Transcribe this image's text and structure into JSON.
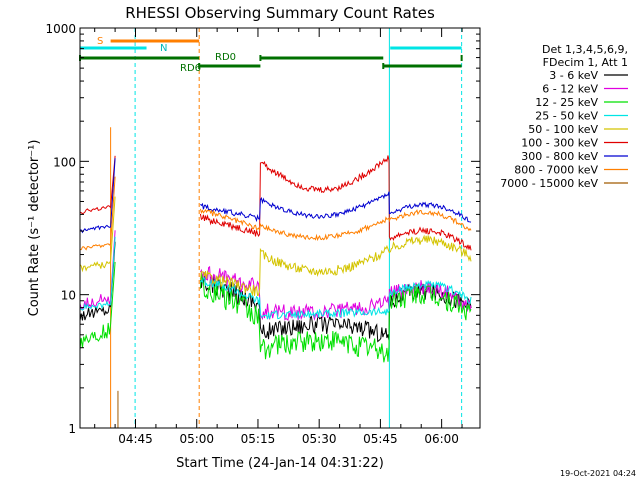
{
  "chart_data": {
    "type": "line",
    "title": "RHESSI Observing Summary Count Rates",
    "xlabel": "Start Time (24-Jan-14 04:31:22)",
    "ylabel": "Count Rate (s⁻¹ detector⁻¹)",
    "yscale": "log",
    "ylim": [
      1,
      1000
    ],
    "xlim_minutes_from_start": [
      0,
      98
    ],
    "x_ticks": [
      {
        "label": "04:45",
        "minute": 13.6
      },
      {
        "label": "05:00",
        "minute": 28.6
      },
      {
        "label": "05:15",
        "minute": 43.6
      },
      {
        "label": "05:30",
        "minute": 58.6
      },
      {
        "label": "05:45",
        "minute": 73.6
      },
      {
        "label": "06:00",
        "minute": 88.6
      }
    ],
    "y_ticks": [
      "1",
      "10",
      "100",
      "1000"
    ],
    "grid": false,
    "legend": {
      "placement": "right",
      "header": [
        "Det 1,3,4,5,6,9,",
        "FDecim 1, Att 1"
      ]
    },
    "series": [
      {
        "name": "3 - 6 keV",
        "color": "#000000"
      },
      {
        "name": "6 - 12 keV",
        "color": "#e000e0"
      },
      {
        "name": "12 - 25 keV",
        "color": "#00e000"
      },
      {
        "name": "25 - 50 keV",
        "color": "#00e5e5"
      },
      {
        "name": "50 - 100 keV",
        "color": "#d4c400"
      },
      {
        "name": "100 - 300 keV",
        "color": "#e00000"
      },
      {
        "name": "300 - 800 keV",
        "color": "#0000d0"
      },
      {
        "name": "800 - 7000 keV",
        "color": "#ff7f00"
      },
      {
        "name": "7000 - 15000 keV",
        "color": "#a05a00"
      }
    ],
    "status_bars": [
      {
        "label": "S",
        "color": "#ff7f00"
      },
      {
        "label": "N",
        "color": "#00e5e5"
      },
      {
        "label": "RD0",
        "color": "#007000"
      },
      {
        "label": "RD6",
        "color": "#007000"
      }
    ]
  },
  "timestamp": "19-Oct-2021 04:24"
}
